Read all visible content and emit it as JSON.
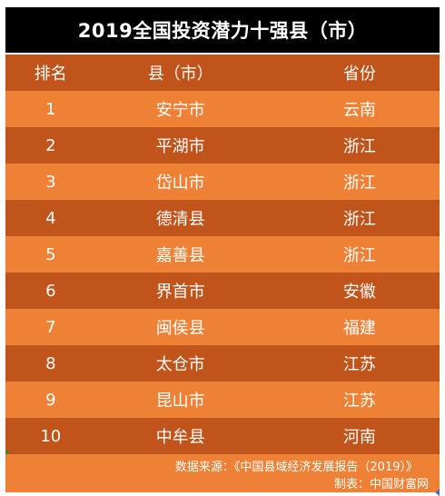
{
  "title": "2019全国投资潜力十强县（市）",
  "header": {
    "rank": "排名",
    "county": "县（市）",
    "province": "省份"
  },
  "rows": [
    {
      "rank": "1",
      "county": "安宁市",
      "province": "云南"
    },
    {
      "rank": "2",
      "county": "平湖市",
      "province": "浙江"
    },
    {
      "rank": "3",
      "county": "岱山市",
      "province": "浙江"
    },
    {
      "rank": "4",
      "county": "德清县",
      "province": "浙江"
    },
    {
      "rank": "5",
      "county": "嘉善县",
      "province": "浙江"
    },
    {
      "rank": "6",
      "county": "界首市",
      "province": "安徽"
    },
    {
      "rank": "7",
      "county": "闽侯县",
      "province": "福建"
    },
    {
      "rank": "8",
      "county": "太仓市",
      "province": "江苏"
    },
    {
      "rank": "9",
      "county": "昆山市",
      "province": "江苏"
    },
    {
      "rank": "10",
      "county": "中牟县",
      "province": "河南"
    }
  ],
  "footer": {
    "source": "数据来源：《中国县域经济发展报告（2019）》",
    "maker": "制表：中国财富网"
  },
  "colors": {
    "title_bg": "#000000",
    "dark_row": "#c0541a",
    "light_row": "#ee8135",
    "text": "#ffffff"
  }
}
